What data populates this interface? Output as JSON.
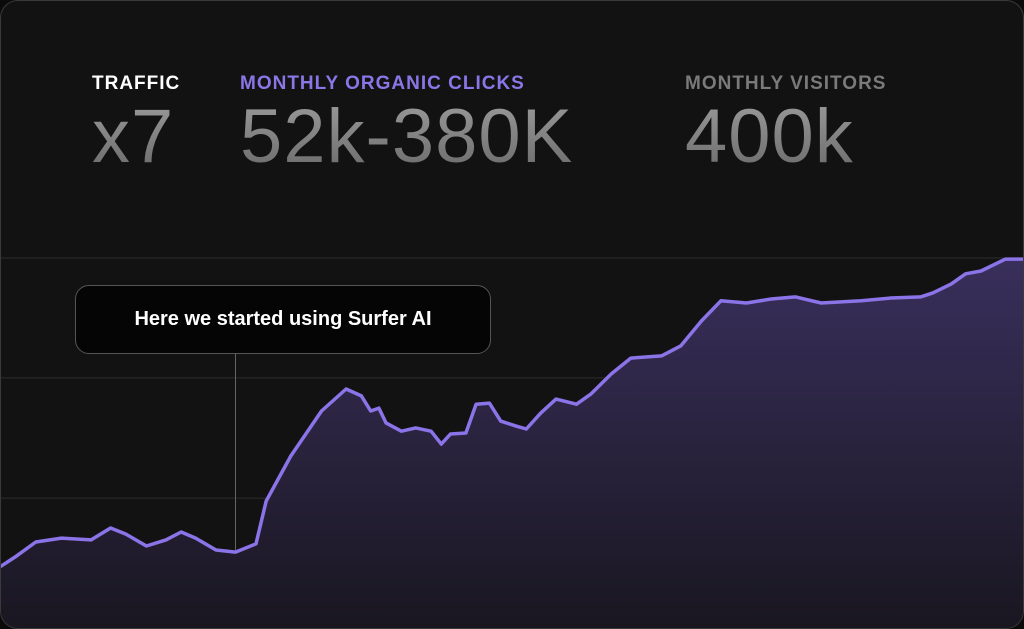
{
  "stats": [
    {
      "label": "TRAFFIC",
      "value": "x7",
      "label_color": "#ffffff"
    },
    {
      "label": "MONTHLY ORGANIC CLICKS",
      "value": "52k-380K",
      "label_color": "#8b76e8"
    },
    {
      "label": "MONTHLY VISITORS",
      "value": "400k",
      "label_color": "#7a7a7a"
    }
  ],
  "callout": {
    "text": "Here we started using Surfer AI"
  },
  "chart_data": {
    "type": "area",
    "title": "",
    "xlabel": "",
    "ylabel": "",
    "xlim": [
      0,
      100
    ],
    "ylim": [
      0,
      100
    ],
    "grid": true,
    "gridlines_y": [
      33.3,
      66.7,
      100
    ],
    "line_color": "#8b74e8",
    "fill_color": "#3b3160",
    "annotation_x": 22.9,
    "x": [
      0,
      1.5,
      3.4,
      5.9,
      8.8,
      10.7,
      12.2,
      14.2,
      16.1,
      17.6,
      19.0,
      21.0,
      22.9,
      24.9,
      25.9,
      28.3,
      31.3,
      33.7,
      35.2,
      36.1,
      36.9,
      37.6,
      39.1,
      40.5,
      42.0,
      43.0,
      43.9,
      45.4,
      46.4,
      47.7,
      48.8,
      50.3,
      51.3,
      52.7,
      54.2,
      56.2,
      57.6,
      59.6,
      61.5,
      64.5,
      66.4,
      68.4,
      70.3,
      72.8,
      75.2,
      77.6,
      80.1,
      84.0,
      86.9,
      89.8,
      91.0,
      92.8,
      94.2,
      95.7,
      98.1,
      100
    ],
    "y": [
      14.4,
      17.2,
      21.1,
      22.2,
      21.7,
      25.0,
      23.3,
      20.0,
      21.7,
      23.9,
      22.2,
      18.9,
      18.3,
      20.6,
      32.5,
      45.0,
      57.5,
      63.6,
      61.7,
      57.5,
      58.3,
      54.2,
      51.9,
      52.8,
      51.9,
      48.3,
      51.1,
      51.4,
      59.4,
      59.7,
      54.7,
      53.3,
      52.5,
      56.9,
      60.8,
      59.4,
      62.2,
      67.8,
      72.2,
      72.8,
      75.6,
      82.5,
      88.1,
      87.5,
      88.6,
      89.2,
      87.5,
      88.1,
      88.9,
      89.2,
      90.3,
      92.8,
      95.6,
      96.4,
      99.7,
      99.7
    ]
  }
}
